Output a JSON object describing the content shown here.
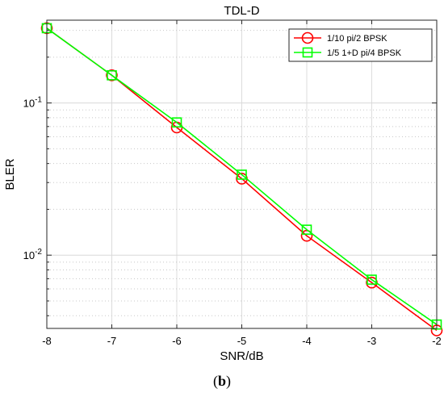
{
  "caption": {
    "open": "(",
    "label": "b",
    "close": ")"
  },
  "chart_data": {
    "type": "line",
    "title": "TDL-D",
    "xlabel": "SNR/dB",
    "ylabel": "BLER",
    "xlim": [
      -8,
      -2
    ],
    "ylim": [
      0.0033,
      0.35
    ],
    "y_scale": "log",
    "grid": true,
    "legend_position": "top-right",
    "x_ticks": [
      -8,
      -7,
      -6,
      -5,
      -4,
      -3,
      -2
    ],
    "x_tick_labels": [
      "-8",
      "-7",
      "-6",
      "-5",
      "-4",
      "-3",
      "-2"
    ],
    "y_ticks": [
      {
        "value": 0.1,
        "base": "10",
        "exp": "-1"
      },
      {
        "value": 0.01,
        "base": "10",
        "exp": "-2"
      }
    ],
    "series": [
      {
        "name": "1/10 pi/2 BPSK",
        "color": "#ff0000",
        "marker": "circle",
        "x": [
          -8,
          -7,
          -6,
          -5,
          -4,
          -3,
          -2
        ],
        "y": [
          0.31,
          0.152,
          0.069,
          0.0318,
          0.0134,
          0.0066,
          0.0032
        ]
      },
      {
        "name": "1/5 1+D pi/4 BPSK",
        "color": "#00ff00",
        "marker": "square",
        "x": [
          -8,
          -7,
          -6,
          -5,
          -4,
          -3,
          -2
        ],
        "y": [
          0.31,
          0.152,
          0.0745,
          0.0338,
          0.0147,
          0.0069,
          0.0035
        ]
      }
    ]
  }
}
